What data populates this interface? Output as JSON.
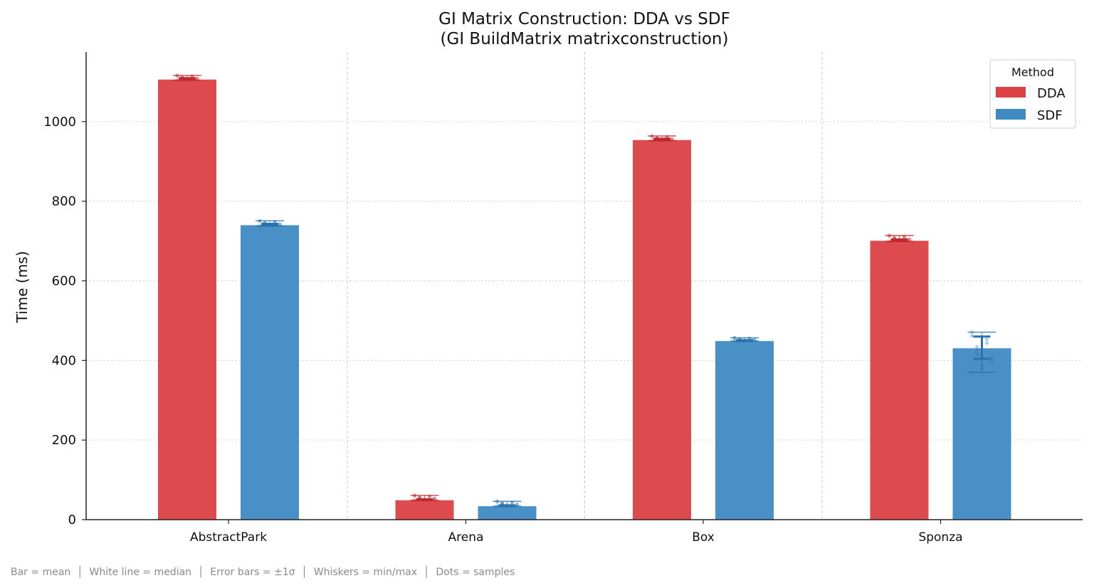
{
  "chart_data": {
    "type": "bar",
    "title": "GI Matrix Construction: DDA vs SDF",
    "subtitle": "(GI BuildMatrix matrixconstruction)",
    "xlabel": "",
    "ylabel": "Time (ms)",
    "ylim": [
      0,
      1175
    ],
    "yticks": [
      0,
      200,
      400,
      600,
      800,
      1000
    ],
    "grid": "horizontal dotted; vertical dashed separators between groups",
    "categories": [
      "AbstractPark",
      "Arena",
      "Box",
      "Sponza"
    ],
    "legend": {
      "title": "Method",
      "placement": "top-right"
    },
    "series": [
      {
        "name": "DDA",
        "color": "#dc4146",
        "values": [
          1107,
          50,
          955,
          702
        ],
        "median": [
          1107,
          50,
          955,
          702
        ],
        "std": [
          2,
          1,
          2,
          2
        ],
        "min": [
          1104,
          49,
          952,
          699
        ],
        "max": [
          1116,
          61,
          964,
          714
        ]
      },
      {
        "name": "SDF",
        "color": "#3f8ac3",
        "values": [
          741,
          35,
          450,
          432
        ],
        "median": [
          741,
          35,
          450,
          432
        ],
        "std": [
          2,
          1,
          1,
          28
        ],
        "min": [
          738,
          34,
          449,
          370
        ],
        "max": [
          751,
          46,
          457,
          471
        ]
      }
    ]
  },
  "footnote": "Bar = mean  │  White line = median  │  Error bars = ±1σ  │  Whiskers = min/max  │  Dots = samples"
}
